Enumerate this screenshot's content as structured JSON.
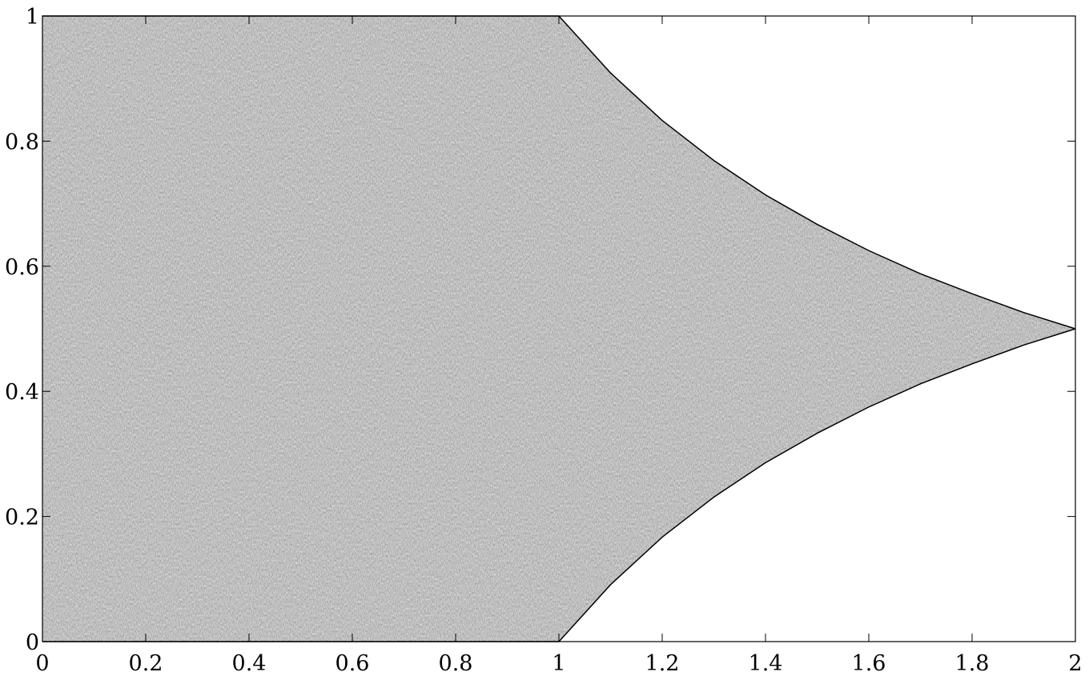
{
  "chart_data": {
    "type": "area",
    "x": [
      0,
      0.5,
      1,
      1.1,
      1.2,
      1.3,
      1.4,
      1.5,
      1.6,
      1.7,
      1.8,
      1.9,
      2
    ],
    "series": [
      {
        "color": "#000000",
        "values": [
          1,
          1,
          1,
          0.909,
          0.833,
          0.769,
          0.714,
          0.667,
          0.625,
          0.588,
          0.556,
          0.526,
          0.5
        ]
      },
      {
        "color": "#000000",
        "values": [
          0,
          0,
          0,
          0.091,
          0.167,
          0.231,
          0.286,
          0.333,
          0.375,
          0.412,
          0.444,
          0.474,
          0.5
        ]
      }
    ],
    "fill": "#9a9a9a",
    "xlim": [
      0,
      2
    ],
    "ylim": [
      0,
      1
    ],
    "xticks": [
      0,
      0.2,
      0.4,
      0.6,
      0.8,
      1,
      1.2,
      1.4,
      1.6,
      1.8,
      2
    ],
    "yticks": [
      0,
      0.2,
      0.4,
      0.6,
      0.8,
      1
    ]
  }
}
